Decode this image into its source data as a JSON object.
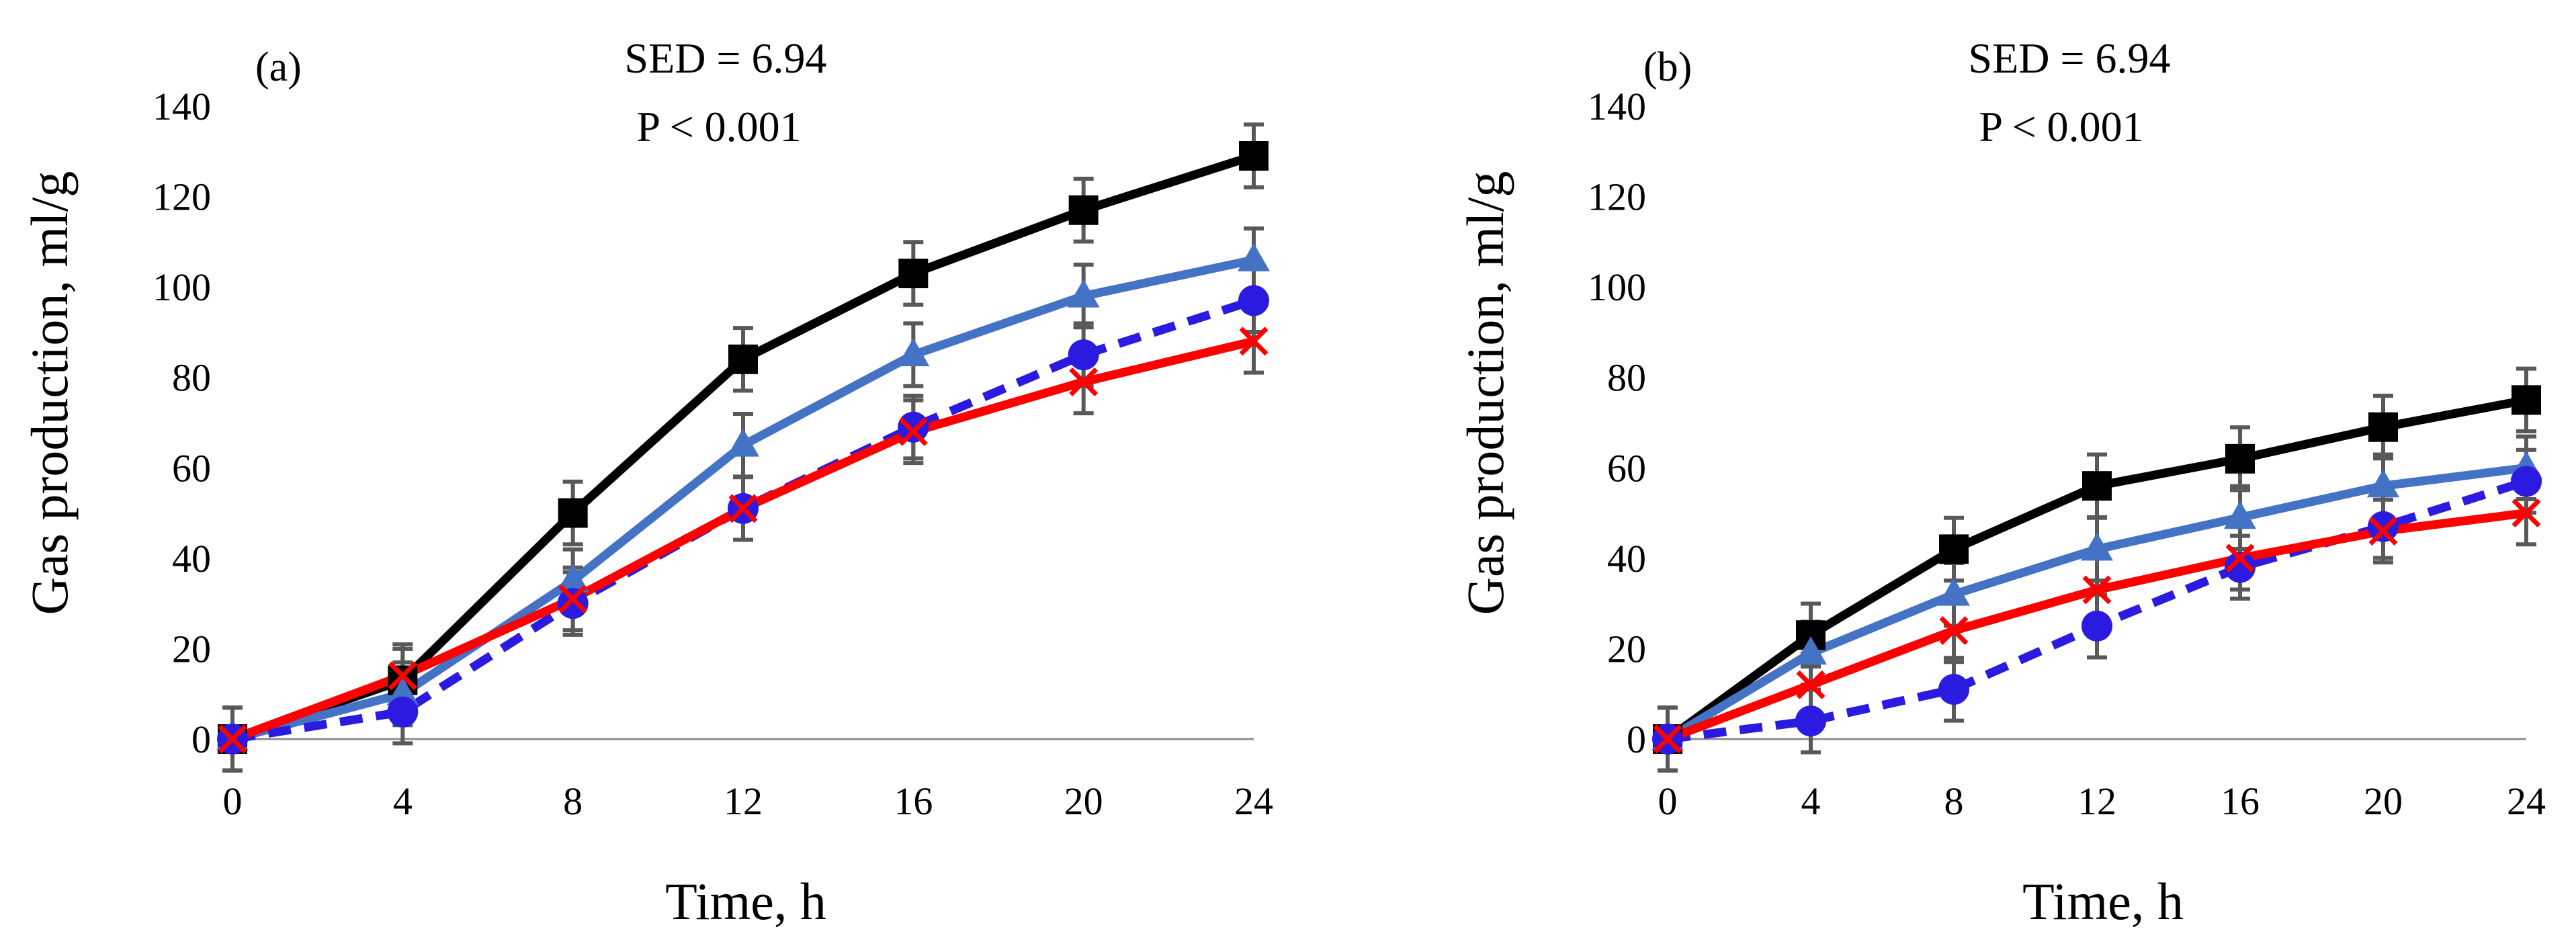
{
  "chart_data": [
    {
      "type": "line",
      "panel_label": "(a)",
      "annotations": [
        "SED = 6.94",
        "P < 0.001"
      ],
      "xlabel": "Time, h",
      "ylabel": "Gas production, ml/g",
      "x": [
        0,
        4,
        8,
        12,
        16,
        20,
        24
      ],
      "xticks": [
        "0",
        "4",
        "8",
        "12",
        "16",
        "20",
        "24"
      ],
      "yticks": [
        "0",
        "20",
        "40",
        "60",
        "80",
        "100",
        "120",
        "140"
      ],
      "xlim": [
        0,
        24
      ],
      "ylim": [
        0,
        140
      ],
      "grid": false,
      "error_bar": 6.94,
      "series": [
        {
          "marker": "square",
          "color": "#000000",
          "dash": "solid",
          "values": [
            0,
            13,
            50,
            84,
            103,
            117,
            129
          ]
        },
        {
          "marker": "triangle",
          "color": "#4472C4",
          "dash": "solid",
          "values": [
            0,
            10,
            35,
            65,
            85,
            98,
            106
          ]
        },
        {
          "marker": "circle",
          "color": "#2B1BE0",
          "dash": "dashed",
          "values": [
            0,
            6,
            30,
            51,
            69,
            85,
            97
          ]
        },
        {
          "marker": "x",
          "color": "#FF0000",
          "dash": "solid",
          "values": [
            0,
            14,
            31,
            51,
            68,
            79,
            88
          ]
        }
      ]
    },
    {
      "type": "line",
      "panel_label": "(b)",
      "annotations": [
        "SED = 6.94",
        "P < 0.001"
      ],
      "xlabel": "Time, h",
      "ylabel": "Gas production, ml/g",
      "x": [
        0,
        4,
        8,
        12,
        16,
        20,
        24
      ],
      "xticks": [
        "0",
        "4",
        "8",
        "12",
        "16",
        "20",
        "24"
      ],
      "yticks": [
        "0",
        "20",
        "40",
        "60",
        "80",
        "100",
        "120",
        "140"
      ],
      "xlim": [
        0,
        24
      ],
      "ylim": [
        0,
        140
      ],
      "grid": false,
      "error_bar": 6.94,
      "series": [
        {
          "marker": "square",
          "color": "#000000",
          "dash": "solid",
          "values": [
            0,
            23,
            42,
            56,
            62,
            69,
            75
          ]
        },
        {
          "marker": "triangle",
          "color": "#4472C4",
          "dash": "solid",
          "values": [
            0,
            19,
            32,
            42,
            49,
            56,
            60
          ]
        },
        {
          "marker": "circle",
          "color": "#2B1BE0",
          "dash": "dashed",
          "values": [
            0,
            4,
            11,
            25,
            38,
            47,
            57
          ]
        },
        {
          "marker": "x",
          "color": "#FF0000",
          "dash": "solid",
          "values": [
            0,
            12,
            24,
            33,
            40,
            46,
            50
          ]
        }
      ]
    }
  ]
}
